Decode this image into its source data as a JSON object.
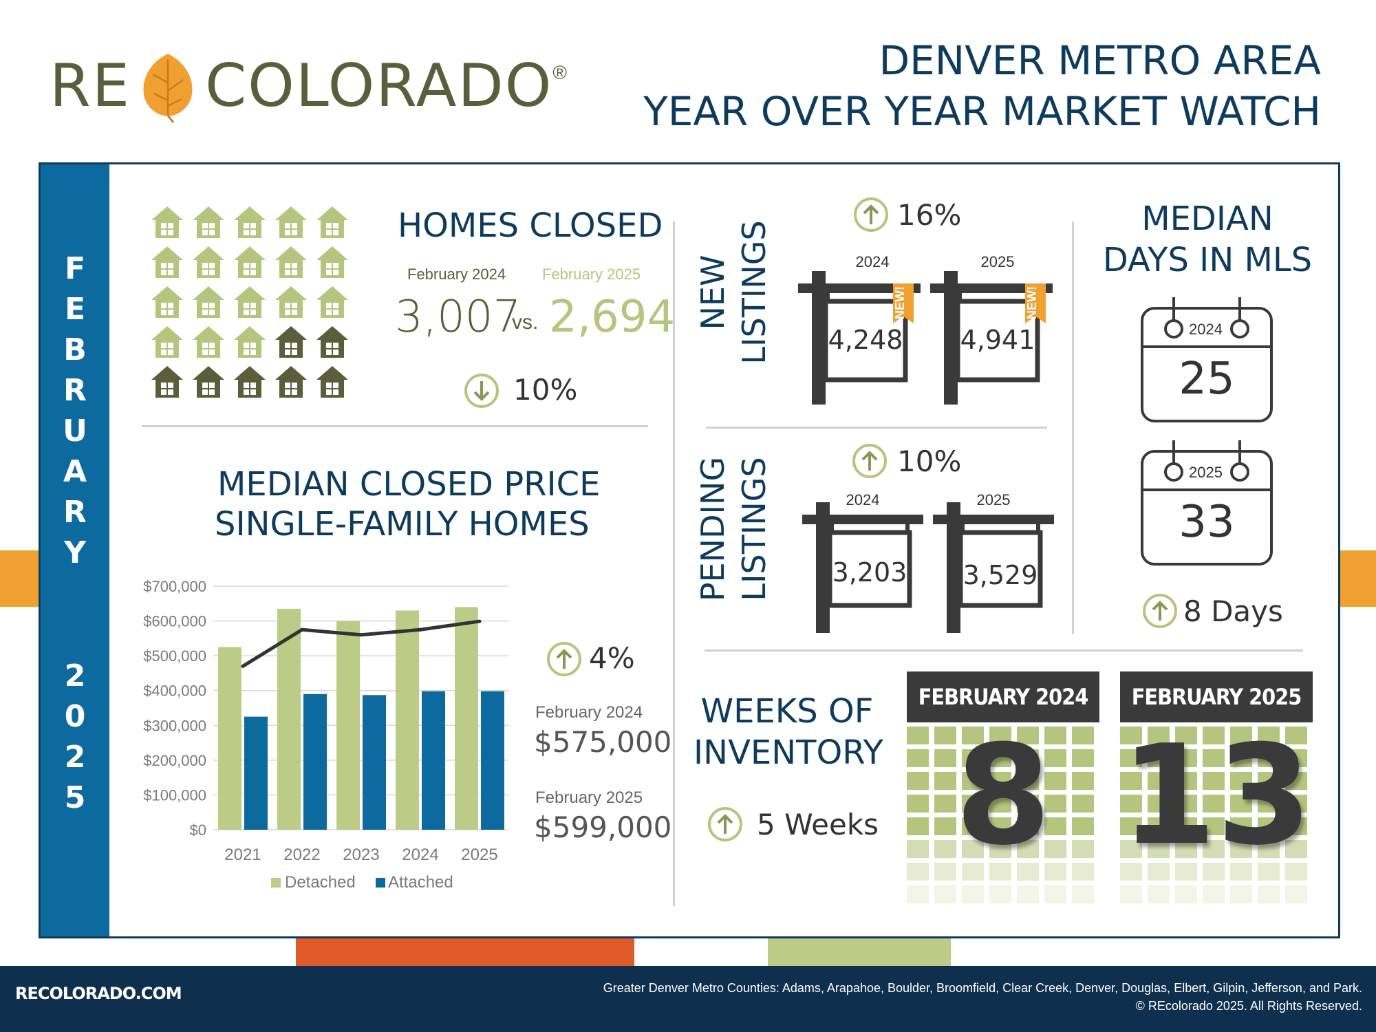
{
  "header": {
    "logo_left": "RE",
    "logo_right": "COLORADO",
    "logo_mark": "®",
    "title_line1": "DENVER METRO AREA",
    "title_line2": "YEAR OVER YEAR MARKET WATCH"
  },
  "month_bar": {
    "month_letters": [
      "F",
      "E",
      "B",
      "R",
      "U",
      "A",
      "R",
      "Y"
    ],
    "year_letters": [
      "2",
      "0",
      "2",
      "5"
    ]
  },
  "homes_closed": {
    "title": "HOMES CLOSED",
    "label_prev": "February 2024",
    "label_curr": "February 2025",
    "value_prev": "3,007",
    "vs": "vs.",
    "value_curr": "2,694",
    "change": "10%",
    "direction": "down",
    "icon_total": 25,
    "icon_light": 18,
    "colors": {
      "light_house": "#b6c57e",
      "dark_house": "#5a5e3b"
    }
  },
  "median_price": {
    "title_line1": "MEDIAN CLOSED PRICE",
    "title_line2": "SINGLE-FAMILY HOMES",
    "change": "4%",
    "direction": "up",
    "label_prev": "February 2024",
    "value_prev": "$575,000",
    "label_curr": "February 2025",
    "value_curr": "$599,000"
  },
  "chart_data": {
    "type": "bar",
    "categories": [
      "2021",
      "2022",
      "2023",
      "2024",
      "2025"
    ],
    "series": [
      {
        "name": "Detached",
        "type": "bar",
        "color": "#bccb86",
        "values": [
          525000,
          635000,
          600000,
          630000,
          640000
        ]
      },
      {
        "name": "Attached",
        "type": "bar",
        "color": "#0d6a9e",
        "values": [
          325000,
          390000,
          387000,
          398000,
          398000
        ]
      },
      {
        "name": "",
        "type": "line",
        "color": "#333333",
        "values": [
          470000,
          575000,
          560000,
          575000,
          599000
        ]
      }
    ],
    "yticks": [
      "$700,000",
      "$600,000",
      "$500,000",
      "$400,000",
      "$300,000",
      "$200,000",
      "$100,000",
      "$0"
    ],
    "ylim": [
      0,
      700000
    ],
    "grid": true,
    "legend_position": "bottom"
  },
  "new_listings": {
    "title_line1": "NEW",
    "title_line2": "LISTINGS",
    "change": "16%",
    "direction": "up",
    "year_prev": "2024",
    "year_curr": "2025",
    "value_prev": "4,248",
    "value_curr": "4,941",
    "tag": "NEW!"
  },
  "pending_listings": {
    "title_line1": "PENDING",
    "title_line2": "LISTINGS",
    "change": "10%",
    "direction": "up",
    "year_prev": "2024",
    "year_curr": "2025",
    "value_prev": "3,203",
    "value_curr": "3,529"
  },
  "days_in_mls": {
    "title_line1": "MEDIAN",
    "title_line2": "DAYS IN MLS",
    "year_prev": "2024",
    "value_prev": "25",
    "year_curr": "2025",
    "value_curr": "33",
    "change": "8 Days",
    "direction": "up"
  },
  "weeks_inventory": {
    "title_line1": "WEEKS OF",
    "title_line2": "INVENTORY",
    "change": "5 Weeks",
    "direction": "up",
    "head_prev": "FEBRUARY 2024",
    "value_prev": "8",
    "head_curr": "FEBRUARY 2025",
    "value_curr": "13"
  },
  "footer": {
    "site": "RECOLORADO.COM",
    "counties": "Greater Denver Metro Counties: Adams, Arapahoe, Boulder, Broomfield, Clear Creek, Denver, Douglas, Elbert, Gilpin, Jefferson, and Park.",
    "copyright": "© REcolorado 2025. All Rights Reserved."
  },
  "colors": {
    "navy": "#0d3b5e",
    "blue": "#0d6a9e",
    "olive": "#5a5e3b",
    "sage": "#b6c57e",
    "orange": "#f0a030",
    "red_accent": "#e05a2a"
  }
}
